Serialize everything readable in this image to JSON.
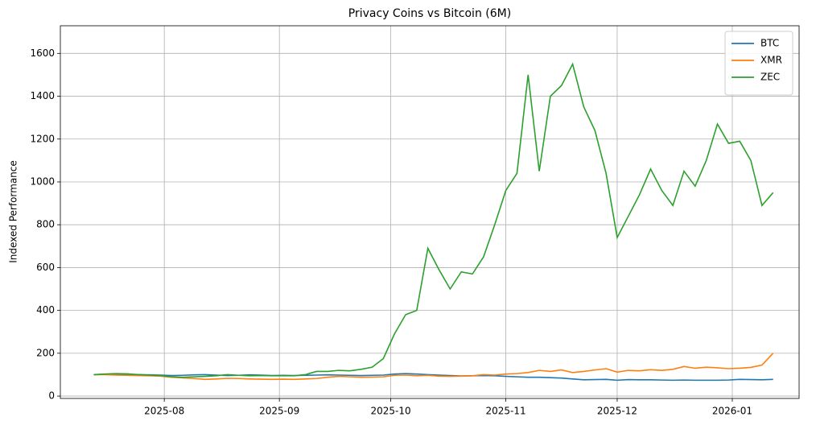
{
  "chart_data": {
    "type": "line",
    "title": "Privacy Coins vs Bitcoin (6M)",
    "ylabel": "Indexed Performance",
    "x": [
      "2025-07-13",
      "2025-07-16",
      "2025-07-19",
      "2025-07-22",
      "2025-07-25",
      "2025-07-28",
      "2025-07-31",
      "2025-08-03",
      "2025-08-06",
      "2025-08-09",
      "2025-08-12",
      "2025-08-15",
      "2025-08-18",
      "2025-08-21",
      "2025-08-24",
      "2025-08-27",
      "2025-08-30",
      "2025-09-02",
      "2025-09-05",
      "2025-09-08",
      "2025-09-11",
      "2025-09-14",
      "2025-09-17",
      "2025-09-20",
      "2025-09-23",
      "2025-09-26",
      "2025-09-29",
      "2025-10-02",
      "2025-10-05",
      "2025-10-08",
      "2025-10-11",
      "2025-10-14",
      "2025-10-17",
      "2025-10-20",
      "2025-10-23",
      "2025-10-26",
      "2025-10-29",
      "2025-11-01",
      "2025-11-04",
      "2025-11-07",
      "2025-11-10",
      "2025-11-13",
      "2025-11-16",
      "2025-11-19",
      "2025-11-22",
      "2025-11-25",
      "2025-11-28",
      "2025-12-01",
      "2025-12-04",
      "2025-12-07",
      "2025-12-10",
      "2025-12-13",
      "2025-12-16",
      "2025-12-19",
      "2025-12-22",
      "2025-12-25",
      "2025-12-28",
      "2025-12-31",
      "2026-01-03",
      "2026-01-06",
      "2026-01-09",
      "2026-01-12"
    ],
    "series": [
      {
        "name": "BTC",
        "color": "#1f77b4",
        "values": [
          100,
          102,
          103,
          101,
          100,
          99,
          98,
          96,
          97,
          99,
          100,
          98,
          96,
          97,
          99,
          98,
          96,
          97,
          96,
          97,
          98,
          99,
          98,
          97,
          96,
          97,
          98,
          103,
          105,
          103,
          100,
          98,
          96,
          94,
          95,
          96,
          95,
          92,
          90,
          88,
          88,
          86,
          84,
          80,
          76,
          77,
          78,
          74,
          77,
          76,
          76,
          75,
          74,
          75,
          74,
          74,
          74,
          75,
          78,
          77,
          76,
          78
        ]
      },
      {
        "name": "XMR",
        "color": "#ff7f0e",
        "values": [
          100,
          100,
          98,
          97,
          96,
          95,
          93,
          88,
          85,
          82,
          78,
          80,
          83,
          82,
          80,
          79,
          78,
          79,
          78,
          80,
          82,
          88,
          92,
          90,
          88,
          89,
          90,
          97,
          98,
          95,
          97,
          93,
          92,
          93,
          95,
          100,
          98,
          103,
          105,
          110,
          120,
          115,
          122,
          110,
          115,
          122,
          128,
          112,
          120,
          118,
          123,
          120,
          125,
          138,
          130,
          135,
          132,
          128,
          130,
          134,
          145,
          200
        ]
      },
      {
        "name": "ZEC",
        "color": "#2ca02c",
        "values": [
          100,
          103,
          105,
          104,
          100,
          98,
          96,
          90,
          88,
          90,
          92,
          95,
          100,
          97,
          95,
          96,
          95,
          95,
          95,
          100,
          115,
          115,
          120,
          118,
          125,
          135,
          175,
          290,
          380,
          400,
          690,
          590,
          500,
          580,
          570,
          650,
          800,
          960,
          1040,
          1500,
          1050,
          1400,
          1450,
          1550,
          1350,
          1240,
          1040,
          740,
          840,
          940,
          1060,
          960,
          890,
          1050,
          980,
          1100,
          1270,
          1180,
          1190,
          1100,
          890,
          950
        ]
      }
    ],
    "xlim": [
      "2025-07-04",
      "2026-01-19"
    ],
    "xticks": [
      {
        "value": "2025-08-01",
        "label": "2025-08"
      },
      {
        "value": "2025-09-01",
        "label": "2025-09"
      },
      {
        "value": "2025-10-01",
        "label": "2025-10"
      },
      {
        "value": "2025-11-01",
        "label": "2025-11"
      },
      {
        "value": "2025-12-01",
        "label": "2025-12"
      },
      {
        "value": "2026-01-01",
        "label": "2026-01"
      }
    ],
    "ylim": [
      -11,
      1729
    ],
    "yticks": [
      0,
      200,
      400,
      600,
      800,
      1000,
      1200,
      1400,
      1600
    ],
    "grid": true,
    "legend": "upper right"
  }
}
